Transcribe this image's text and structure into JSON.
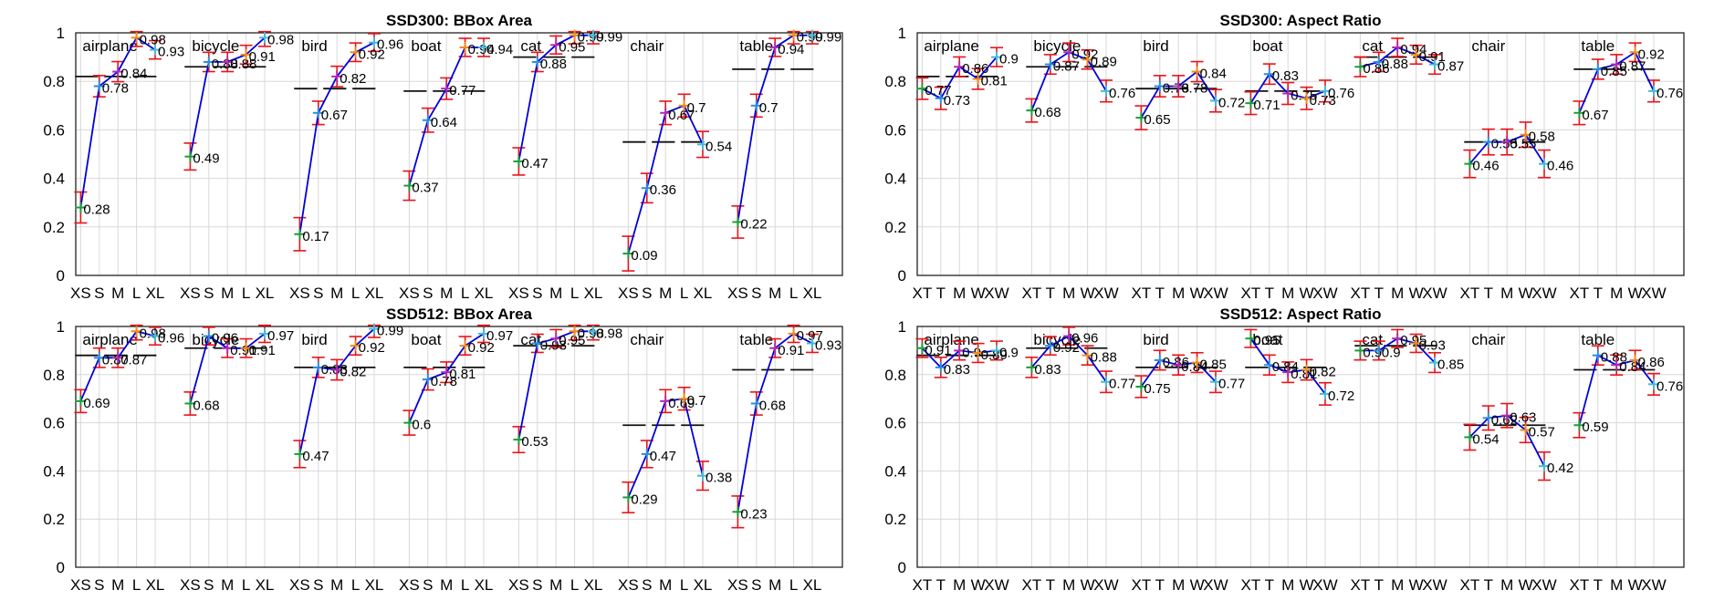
{
  "chart_data": [
    {
      "type": "line",
      "title": "SSD300: BBox Area",
      "ylim": [
        0,
        1
      ],
      "yticks": [
        "0",
        "0.2",
        "0.4",
        "0.6",
        "0.8",
        "1"
      ],
      "grid": true,
      "ticks": [
        "XS",
        "S",
        "M",
        "L",
        "XL"
      ],
      "groups": [
        {
          "label": "airplane",
          "values": [
            0.28,
            0.78,
            0.84,
            0.98,
            0.93
          ],
          "avg": 0.82
        },
        {
          "label": "bicycle",
          "values": [
            0.49,
            0.88,
            0.88,
            0.91,
            0.98
          ],
          "avg": 0.86
        },
        {
          "label": "bird",
          "values": [
            0.17,
            0.67,
            0.82,
            0.92,
            0.96
          ],
          "avg": 0.77
        },
        {
          "label": "boat",
          "values": [
            0.37,
            0.64,
            0.77,
            0.94,
            0.94
          ],
          "avg": 0.76
        },
        {
          "label": "cat",
          "values": [
            0.47,
            0.88,
            0.95,
            0.99,
            0.99
          ],
          "avg": 0.9
        },
        {
          "label": "chair",
          "values": [
            0.09,
            0.36,
            0.67,
            0.7,
            0.54
          ],
          "avg": 0.55
        },
        {
          "label": "table",
          "values": [
            0.22,
            0.7,
            0.94,
            0.99,
            0.99
          ],
          "avg": 0.85
        }
      ]
    },
    {
      "type": "line",
      "title": "SSD300: Aspect Ratio",
      "ylim": [
        0,
        1
      ],
      "yticks": [
        "0",
        "0.2",
        "0.4",
        "0.6",
        "0.8",
        "1"
      ],
      "grid": true,
      "ticks": [
        "XT",
        "T",
        "M",
        "W",
        "XW"
      ],
      "groups": [
        {
          "label": "airplane",
          "values": [
            0.77,
            0.73,
            0.86,
            0.81,
            0.9
          ],
          "avg": 0.82
        },
        {
          "label": "bicycle",
          "values": [
            0.68,
            0.87,
            0.92,
            0.89,
            0.76
          ],
          "avg": 0.86
        },
        {
          "label": "bird",
          "values": [
            0.65,
            0.78,
            0.78,
            0.84,
            0.72
          ],
          "avg": 0.77
        },
        {
          "label": "boat",
          "values": [
            0.71,
            0.83,
            0.75,
            0.73,
            0.76
          ],
          "avg": 0.76
        },
        {
          "label": "cat",
          "values": [
            0.86,
            0.88,
            0.94,
            0.91,
            0.87
          ],
          "avg": 0.9
        },
        {
          "label": "chair",
          "values": [
            0.46,
            0.55,
            0.55,
            0.58,
            0.46
          ],
          "avg": 0.55
        },
        {
          "label": "table",
          "values": [
            0.67,
            0.85,
            0.87,
            0.92,
            0.76
          ],
          "avg": 0.85
        }
      ]
    },
    {
      "type": "line",
      "title": "SSD512: BBox Area",
      "ylim": [
        0,
        1
      ],
      "yticks": [
        "0",
        "0.2",
        "0.4",
        "0.6",
        "0.8",
        "1"
      ],
      "grid": true,
      "ticks": [
        "XS",
        "S",
        "M",
        "L",
        "XL"
      ],
      "groups": [
        {
          "label": "airplane",
          "values": [
            0.69,
            0.87,
            0.87,
            0.98,
            0.96
          ],
          "avg": 0.88
        },
        {
          "label": "bicycle",
          "values": [
            0.68,
            0.96,
            0.91,
            0.91,
            0.97
          ],
          "avg": 0.91
        },
        {
          "label": "bird",
          "values": [
            0.47,
            0.83,
            0.82,
            0.92,
            0.99
          ],
          "avg": 0.83
        },
        {
          "label": "boat",
          "values": [
            0.6,
            0.78,
            0.81,
            0.92,
            0.97
          ],
          "avg": 0.83
        },
        {
          "label": "cat",
          "values": [
            0.53,
            0.93,
            0.95,
            0.98,
            0.98
          ],
          "avg": 0.92
        },
        {
          "label": "chair",
          "values": [
            0.29,
            0.47,
            0.69,
            0.7,
            0.38
          ],
          "avg": 0.59
        },
        {
          "label": "table",
          "values": [
            0.23,
            0.68,
            0.91,
            0.97,
            0.93
          ],
          "avg": 0.82
        }
      ]
    },
    {
      "type": "line",
      "title": "SSD512: Aspect Ratio",
      "ylim": [
        0,
        1
      ],
      "yticks": [
        "0",
        "0.2",
        "0.4",
        "0.6",
        "0.8",
        "1"
      ],
      "grid": true,
      "ticks": [
        "XT",
        "T",
        "M",
        "W",
        "XW"
      ],
      "groups": [
        {
          "label": "airplane",
          "values": [
            0.91,
            0.83,
            0.9,
            0.89,
            0.9
          ],
          "avg": 0.88
        },
        {
          "label": "bicycle",
          "values": [
            0.83,
            0.92,
            0.96,
            0.88,
            0.77
          ],
          "avg": 0.91
        },
        {
          "label": "bird",
          "values": [
            0.75,
            0.86,
            0.84,
            0.85,
            0.77
          ],
          "avg": 0.83
        },
        {
          "label": "boat",
          "values": [
            0.95,
            0.84,
            0.81,
            0.82,
            0.72
          ],
          "avg": 0.83
        },
        {
          "label": "cat",
          "values": [
            0.9,
            0.9,
            0.95,
            0.93,
            0.85
          ],
          "avg": 0.92
        },
        {
          "label": "chair",
          "values": [
            0.54,
            0.62,
            0.63,
            0.57,
            0.42
          ],
          "avg": 0.59
        },
        {
          "label": "table",
          "values": [
            0.59,
            0.88,
            0.84,
            0.86,
            0.76
          ],
          "avg": 0.82
        }
      ]
    }
  ],
  "colors": {
    "line": "#0000dd",
    "error_bar": "#e8141a",
    "average": "#111111",
    "grid": "#d8d8d8",
    "axis": "#222222",
    "marker": [
      "#1f9b3a",
      "#2f8be0",
      "#b02ab0",
      "#f08a1a",
      "#4ab8d8"
    ]
  }
}
